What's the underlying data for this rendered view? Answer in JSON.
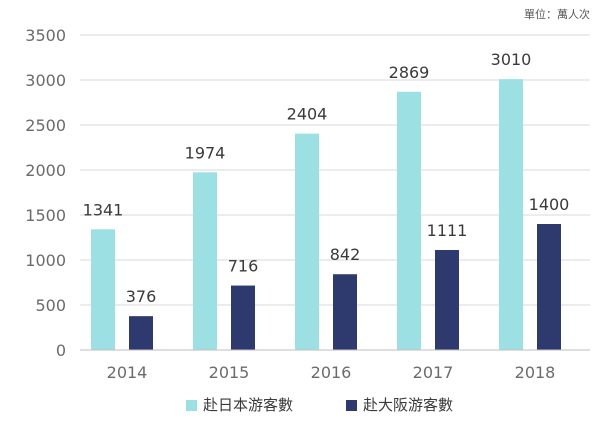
{
  "chart_data": {
    "type": "bar",
    "unit_note": "單位：萬人次",
    "categories": [
      "2014",
      "2015",
      "2016",
      "2017",
      "2018"
    ],
    "series": [
      {
        "name": "赴日本游客數",
        "color": "#9de0e3",
        "values": [
          1341,
          1974,
          2404,
          2869,
          3010
        ]
      },
      {
        "name": "赴大阪游客數",
        "color": "#2e3a6e",
        "values": [
          376,
          716,
          842,
          1111,
          1400
        ]
      }
    ],
    "yticks": [
      0,
      500,
      1000,
      1500,
      2000,
      2500,
      3000,
      3500
    ],
    "ylim": [
      0,
      3500
    ],
    "grid": true,
    "legend_position": "bottom"
  }
}
